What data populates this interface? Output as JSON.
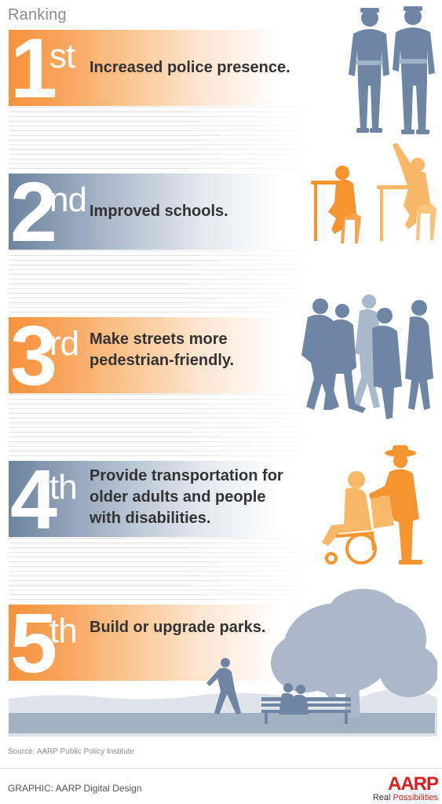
{
  "heading": "Ranking",
  "items": [
    {
      "number": "1",
      "suffix": "st",
      "lines": [
        "Increased police presence."
      ],
      "color": "orange"
    },
    {
      "number": "2",
      "suffix": "nd",
      "lines": [
        "Improved schools."
      ],
      "color": "blue"
    },
    {
      "number": "3",
      "suffix": "rd",
      "lines": [
        "Make streets more",
        "pedestrian-friendly."
      ],
      "color": "orange"
    },
    {
      "number": "4",
      "suffix": "th",
      "lines": [
        "Provide transportation for",
        "older adults and people",
        "with disabilities."
      ],
      "color": "blue"
    },
    {
      "number": "5",
      "suffix": "th",
      "lines": [
        "Build or upgrade parks."
      ],
      "color": "orange"
    }
  ],
  "source": "Source:  AARP Public Policy Institute",
  "credit": "GRAPHIC: AARP Digital Design",
  "logo": {
    "word": "AARP",
    "tagline_1": "Real ",
    "tagline_2": "Possibilities"
  },
  "colors": {
    "orange": "#f7923c",
    "blue": "#6b84a0",
    "silhouette_blue": "#6e86a3",
    "silhouette_orange": "#f7a040",
    "text": "#333333"
  },
  "icons": [
    "police-officers-icon",
    "students-at-desks-icon",
    "pedestrians-icon",
    "wheelchair-assist-icon",
    "park-scene-icon"
  ]
}
